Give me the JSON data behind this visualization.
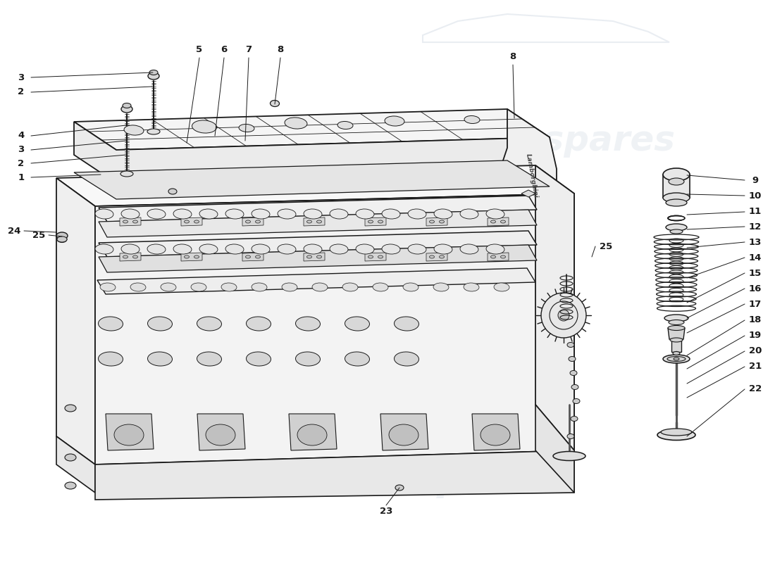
{
  "bg": "#ffffff",
  "lc": "#1a1a1a",
  "wm_color": "#aabbcc",
  "wm_alpha": 0.18,
  "wm_text": "eurospares",
  "left_labels": [
    [
      "3",
      30,
      118
    ],
    [
      "2",
      30,
      140
    ],
    [
      "4",
      30,
      195
    ],
    [
      "3",
      30,
      213
    ],
    [
      "2",
      30,
      232
    ],
    [
      "1",
      30,
      252
    ],
    [
      "24",
      22,
      328
    ],
    [
      "25",
      52,
      332
    ]
  ],
  "top_labels": [
    [
      "5",
      285,
      72
    ],
    [
      "6",
      322,
      72
    ],
    [
      "7",
      356,
      72
    ],
    [
      "8",
      400,
      72
    ],
    [
      "8",
      728,
      82
    ]
  ],
  "right_labels": [
    [
      "9",
      1072,
      265
    ],
    [
      "10",
      1072,
      290
    ],
    [
      "11",
      1072,
      314
    ],
    [
      "12",
      1072,
      336
    ],
    [
      "13",
      1072,
      358
    ],
    [
      "14",
      1072,
      380
    ],
    [
      "15",
      1072,
      400
    ],
    [
      "16",
      1072,
      422
    ],
    [
      "17",
      1072,
      443
    ],
    [
      "18",
      1072,
      465
    ],
    [
      "19",
      1072,
      487
    ],
    [
      "20",
      1072,
      509
    ],
    [
      "21",
      1072,
      531
    ],
    [
      "22",
      1072,
      560
    ],
    [
      "25",
      857,
      352
    ]
  ],
  "bot_label": [
    "23",
    548,
    726
  ]
}
